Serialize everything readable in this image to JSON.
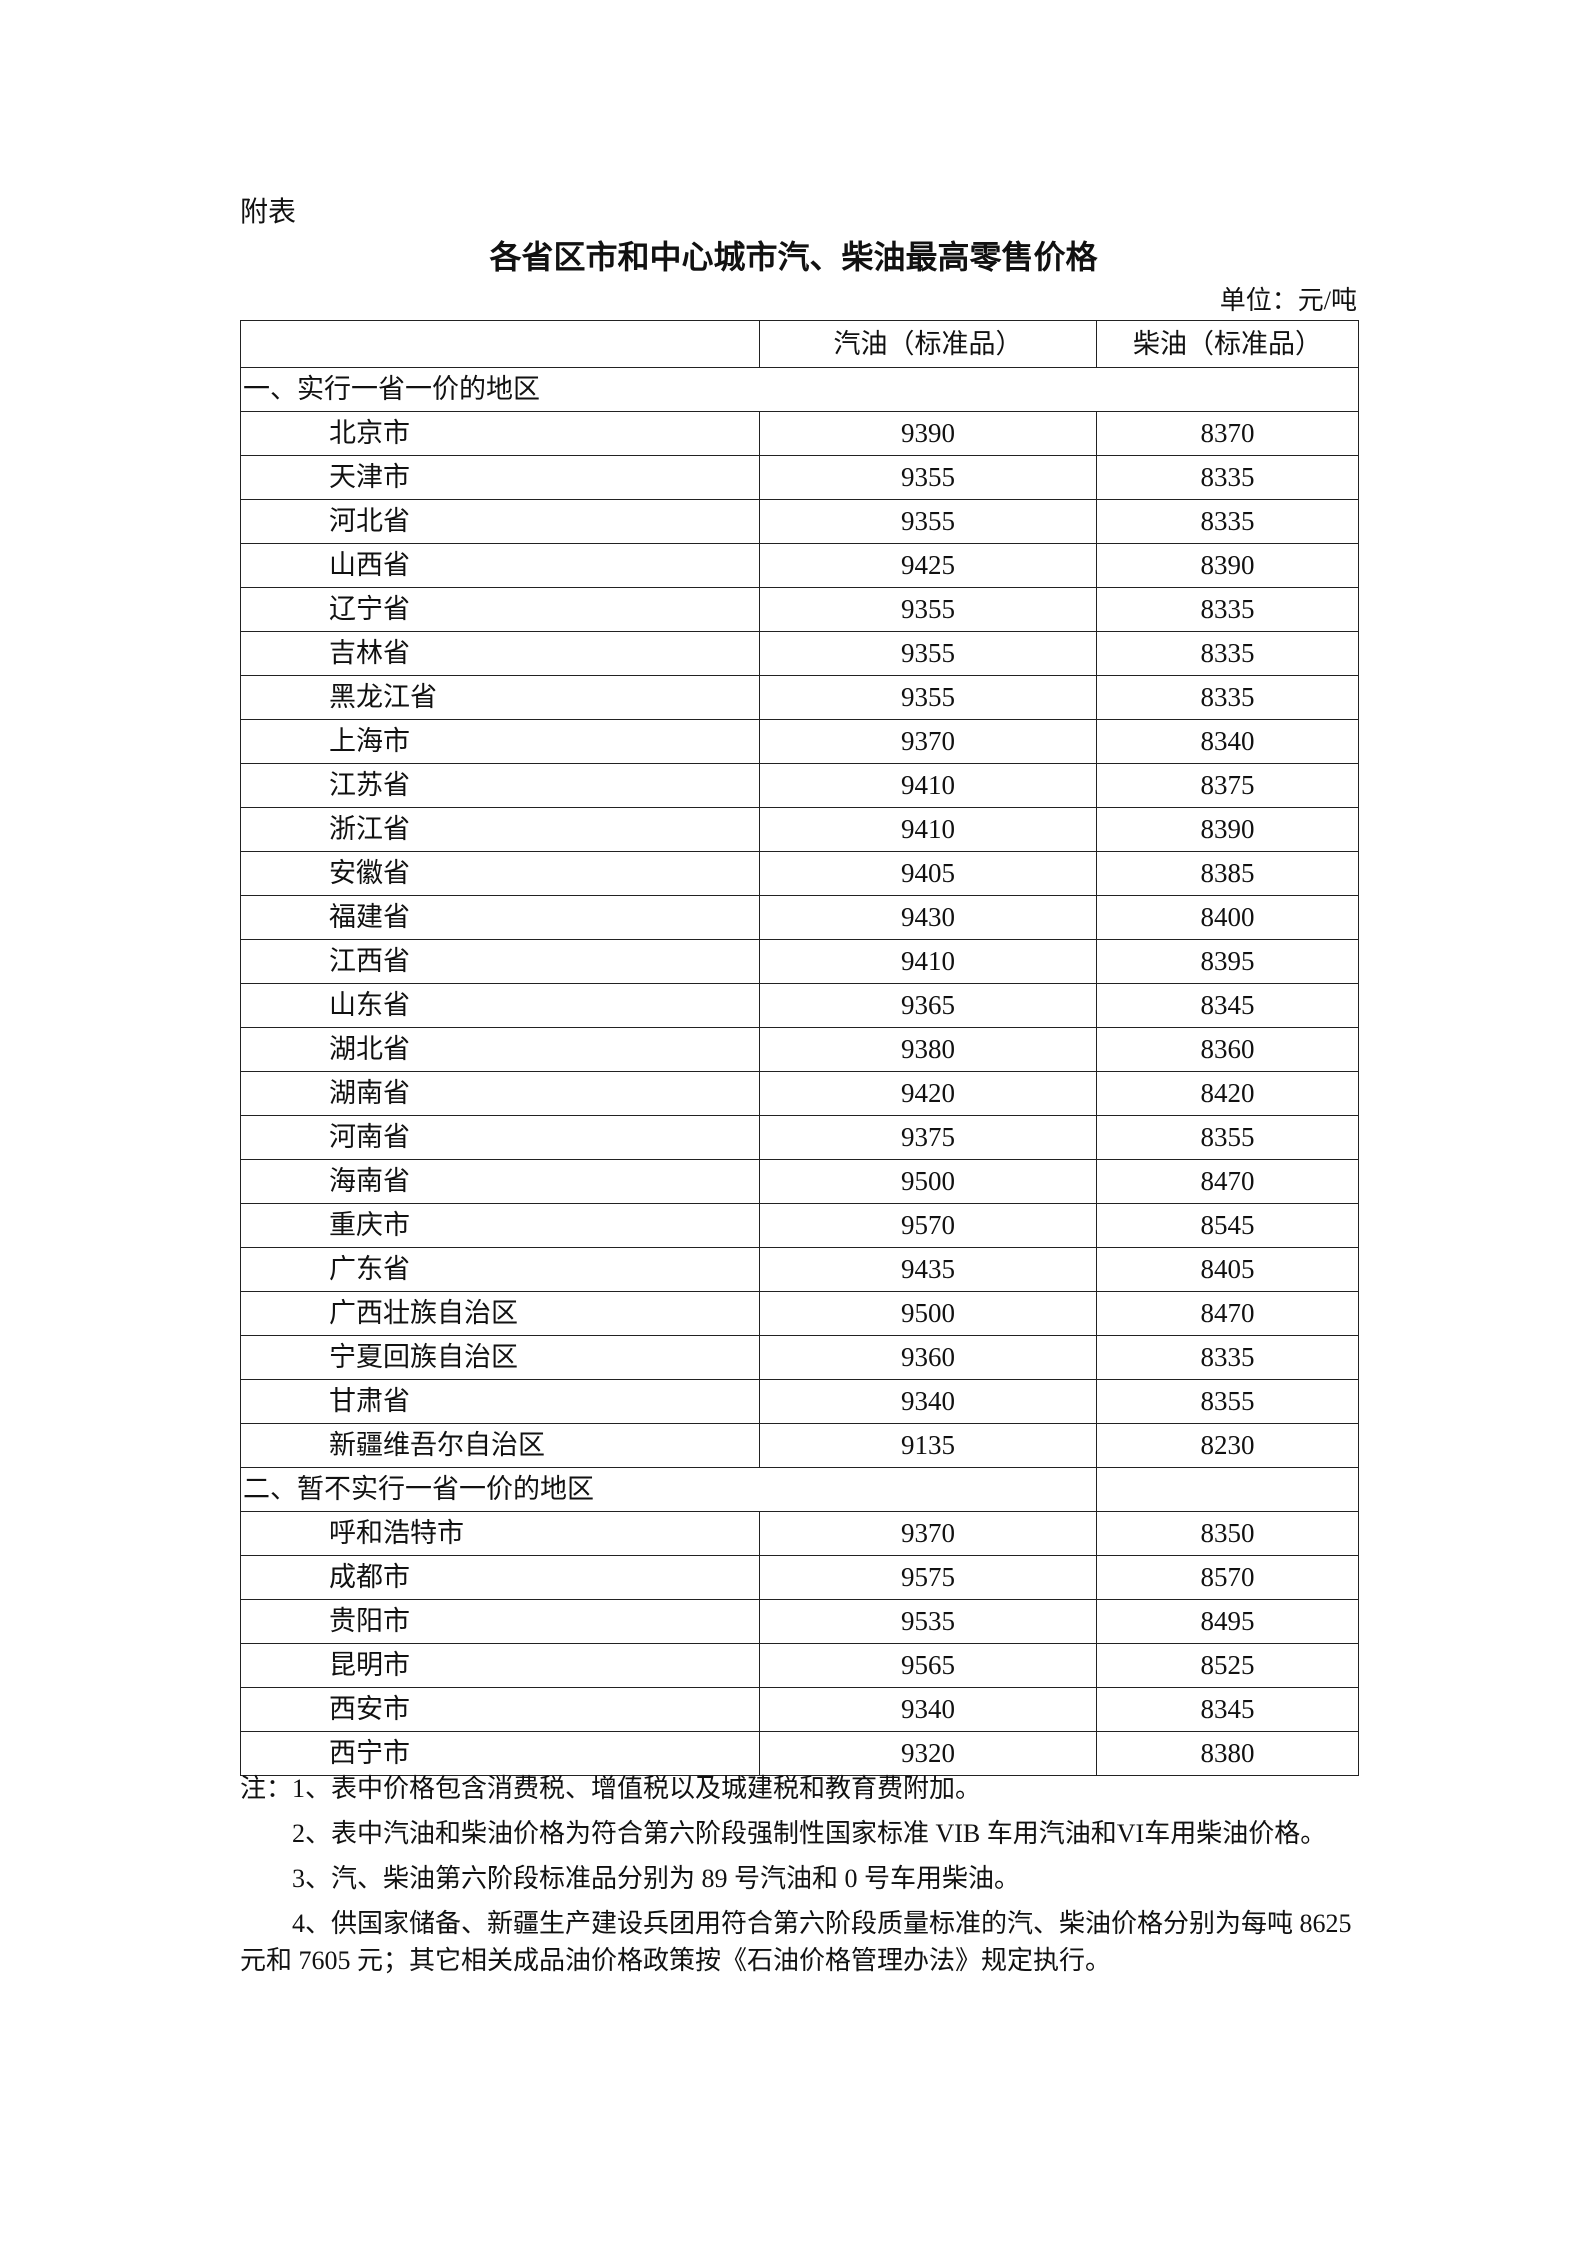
{
  "appendix_label": "附表",
  "title": "各省区市和中心城市汽、柴油最高零售价格",
  "unit": "单位：元/吨",
  "table": {
    "headers": [
      "",
      "汽油（标准品）",
      "柴油（标准品）"
    ],
    "sections": [
      {
        "label": "一、实行一省一价的地区",
        "rows": [
          [
            "北京市",
            "9390",
            "8370"
          ],
          [
            "天津市",
            "9355",
            "8335"
          ],
          [
            "河北省",
            "9355",
            "8335"
          ],
          [
            "山西省",
            "9425",
            "8390"
          ],
          [
            "辽宁省",
            "9355",
            "8335"
          ],
          [
            "吉林省",
            "9355",
            "8335"
          ],
          [
            "黑龙江省",
            "9355",
            "8335"
          ],
          [
            "上海市",
            "9370",
            "8340"
          ],
          [
            "江苏省",
            "9410",
            "8375"
          ],
          [
            "浙江省",
            "9410",
            "8390"
          ],
          [
            "安徽省",
            "9405",
            "8385"
          ],
          [
            "福建省",
            "9430",
            "8400"
          ],
          [
            "江西省",
            "9410",
            "8395"
          ],
          [
            "山东省",
            "9365",
            "8345"
          ],
          [
            "湖北省",
            "9380",
            "8360"
          ],
          [
            "湖南省",
            "9420",
            "8420"
          ],
          [
            "河南省",
            "9375",
            "8355"
          ],
          [
            "海南省",
            "9500",
            "8470"
          ],
          [
            "重庆市",
            "9570",
            "8545"
          ],
          [
            "广东省",
            "9435",
            "8405"
          ],
          [
            "广西壮族自治区",
            "9500",
            "8470"
          ],
          [
            "宁夏回族自治区",
            "9360",
            "8335"
          ],
          [
            "甘肃省",
            "9340",
            "8355"
          ],
          [
            "新疆维吾尔自治区",
            "9135",
            "8230"
          ]
        ]
      },
      {
        "label": "二、暂不实行一省一价的地区",
        "rows": [
          [
            "呼和浩特市",
            "9370",
            "8350"
          ],
          [
            "成都市",
            "9575",
            "8570"
          ],
          [
            "贵阳市",
            "9535",
            "8495"
          ],
          [
            "昆明市",
            "9565",
            "8525"
          ],
          [
            "西安市",
            "9340",
            "8345"
          ],
          [
            "西宁市",
            "9320",
            "8380"
          ]
        ]
      }
    ]
  },
  "notes": [
    "注：1、表中价格包含消费税、增值税以及城建税和教育费附加。",
    "2、表中汽油和柴油价格为符合第六阶段强制性国家标准 VIB 车用汽油和VI车用柴油价格。",
    "3、汽、柴油第六阶段标准品分别为 89 号汽油和 0 号车用柴油。",
    "4、供国家储备、新疆生产建设兵团用符合第六阶段质量标准的汽、柴油价格分别为每吨 8625 元和 7605 元；其它相关成品油价格政策按《石油价格管理办法》规定执行。"
  ]
}
